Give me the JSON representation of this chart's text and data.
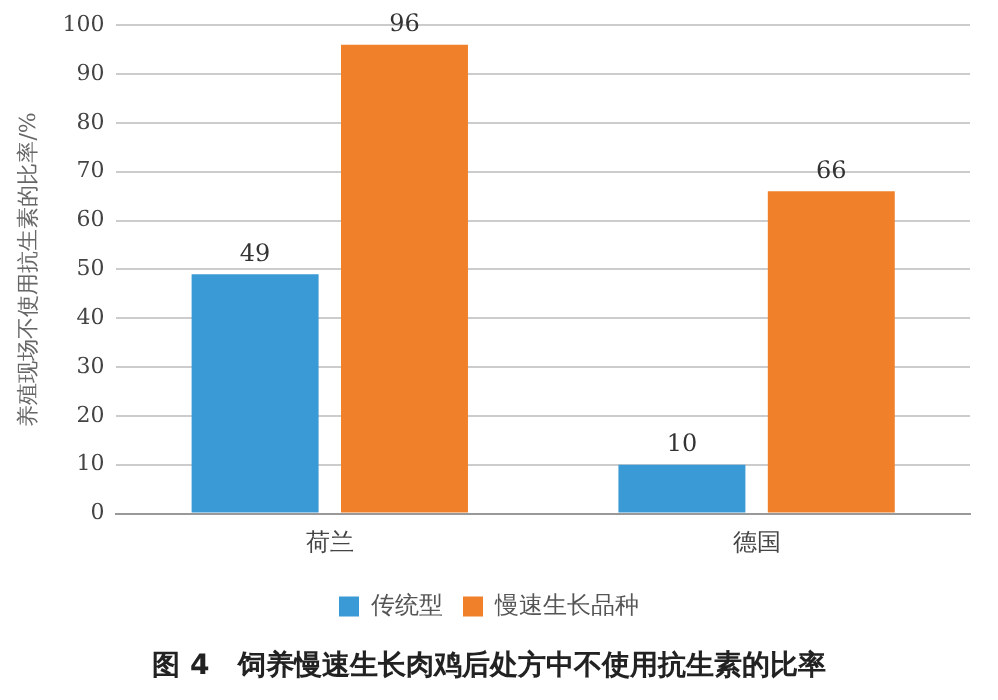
{
  "chart_data": {
    "type": "bar",
    "title": "图 4　饲养慢速生长肉鸡后处方中不使用抗生素的比率",
    "ylabel": "养殖现场不使用抗生素的比率/%",
    "categories": [
      "荷兰",
      "德国"
    ],
    "series": [
      {
        "name": "传统型",
        "color": "#3a9ad6",
        "values": [
          49,
          10
        ]
      },
      {
        "name": "慢速生长品种",
        "color": "#f0802a",
        "values": [
          96,
          66
        ]
      }
    ],
    "ylim": [
      0,
      100
    ],
    "yticks": [
      0,
      10,
      20,
      30,
      40,
      50,
      60,
      70,
      80,
      90,
      100
    ],
    "grid": "y",
    "legend": "bottom",
    "data_labels": true
  }
}
